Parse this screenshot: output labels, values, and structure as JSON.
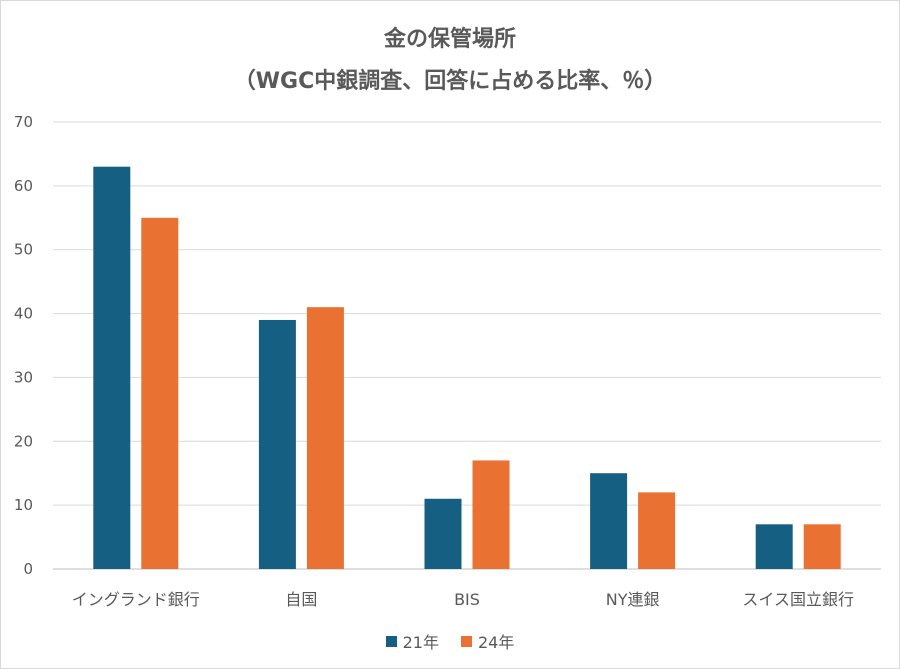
{
  "chart_data": {
    "type": "bar",
    "title": "金の保管場所",
    "subtitle": "（WGC中銀調査、回答に占める比率、％）",
    "categories": [
      "イングランド銀行",
      "自国",
      "BIS",
      "NY連銀",
      "スイス国立銀行"
    ],
    "series": [
      {
        "name": "21年",
        "values": [
          63,
          39,
          11,
          15,
          7
        ],
        "color": "#156082"
      },
      {
        "name": "24年",
        "values": [
          55,
          41,
          17,
          12,
          7
        ],
        "color": "#e97132"
      }
    ],
    "ylim": [
      0,
      70
    ],
    "yticks": [
      0,
      10,
      20,
      30,
      40,
      50,
      60,
      70
    ],
    "grid": true,
    "legend_position": "bottom"
  }
}
